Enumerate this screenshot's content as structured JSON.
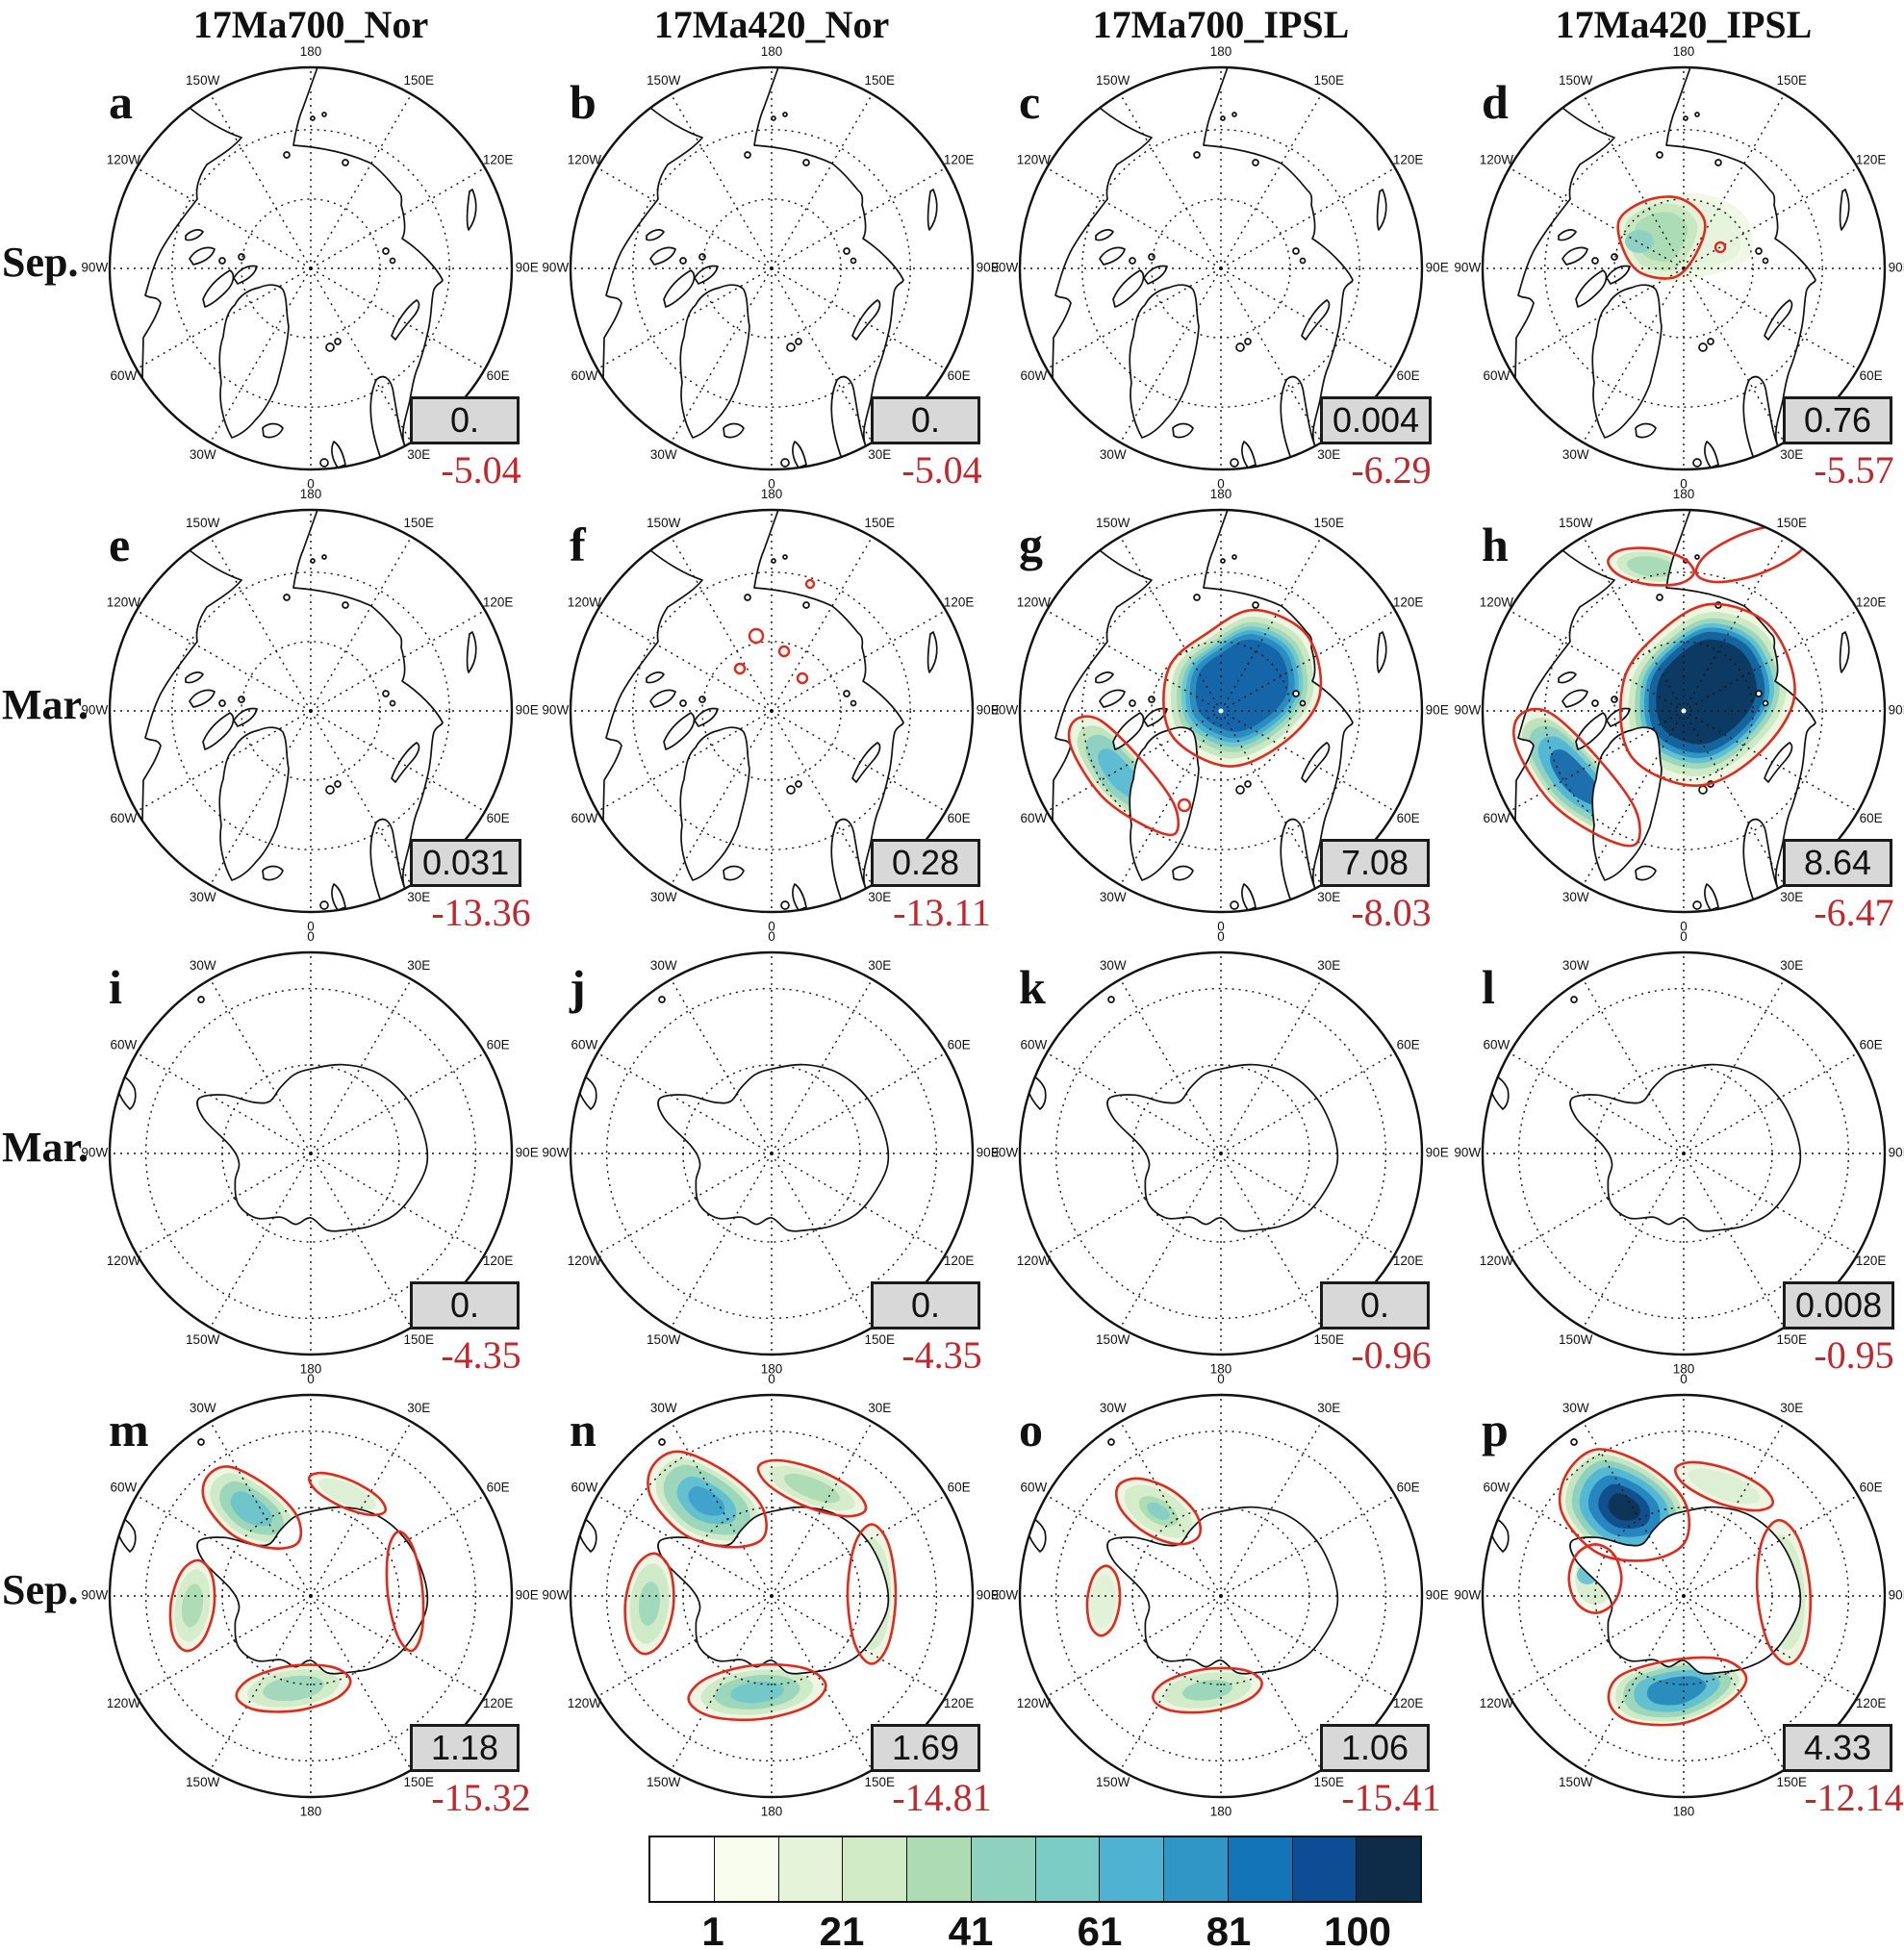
{
  "columns": [
    "17Ma700_Nor",
    "17Ma420_Nor",
    "17Ma700_IPSL",
    "17Ma420_IPSL"
  ],
  "rows": [
    {
      "label": "Sep."
    },
    {
      "label": "Mar."
    },
    {
      "label": "Mar."
    },
    {
      "label": "Sep."
    }
  ],
  "panels": [
    {
      "letter": "a",
      "region": "arctic",
      "row": 0,
      "col": 0,
      "value": "0.",
      "anomaly": "-5.04"
    },
    {
      "letter": "b",
      "region": "arctic",
      "row": 0,
      "col": 1,
      "value": "0.",
      "anomaly": "-5.04"
    },
    {
      "letter": "c",
      "region": "arctic",
      "row": 0,
      "col": 2,
      "value": "0.004",
      "anomaly": "-6.29"
    },
    {
      "letter": "d",
      "region": "arctic",
      "row": 0,
      "col": 3,
      "value": "0.76",
      "anomaly": "-5.57"
    },
    {
      "letter": "e",
      "region": "arctic",
      "row": 1,
      "col": 0,
      "value": "0.031",
      "anomaly": "-13.36"
    },
    {
      "letter": "f",
      "region": "arctic",
      "row": 1,
      "col": 1,
      "value": "0.28",
      "anomaly": "-13.11"
    },
    {
      "letter": "g",
      "region": "arctic",
      "row": 1,
      "col": 2,
      "value": "7.08",
      "anomaly": "-8.03"
    },
    {
      "letter": "h",
      "region": "arctic",
      "row": 1,
      "col": 3,
      "value": "8.64",
      "anomaly": "-6.47"
    },
    {
      "letter": "i",
      "region": "antarctic",
      "row": 2,
      "col": 0,
      "value": "0.",
      "anomaly": "-4.35"
    },
    {
      "letter": "j",
      "region": "antarctic",
      "row": 2,
      "col": 1,
      "value": "0.",
      "anomaly": "-4.35"
    },
    {
      "letter": "k",
      "region": "antarctic",
      "row": 2,
      "col": 2,
      "value": "0.",
      "anomaly": "-0.96"
    },
    {
      "letter": "l",
      "region": "antarctic",
      "row": 2,
      "col": 3,
      "value": "0.008",
      "anomaly": "-0.95"
    },
    {
      "letter": "m",
      "region": "antarctic",
      "row": 3,
      "col": 0,
      "value": "1.18",
      "anomaly": "-15.32"
    },
    {
      "letter": "n",
      "region": "antarctic",
      "row": 3,
      "col": 1,
      "value": "1.69",
      "anomaly": "-14.81"
    },
    {
      "letter": "o",
      "region": "antarctic",
      "row": 3,
      "col": 2,
      "value": "1.06",
      "anomaly": "-15.41"
    },
    {
      "letter": "p",
      "region": "antarctic",
      "row": 3,
      "col": 3,
      "value": "4.33",
      "anomaly": "-12.14"
    }
  ],
  "graticule_labels": {
    "arctic": [
      "180",
      "150E",
      "120E",
      "90E",
      "60E",
      "30E",
      "0",
      "30W",
      "60W",
      "90W",
      "120W",
      "150W"
    ],
    "antarctic": [
      "0",
      "30E",
      "60E",
      "90E",
      "120E",
      "150E",
      "180",
      "150W",
      "120W",
      "90W",
      "60W",
      "30W"
    ]
  },
  "colorbar": {
    "colors": [
      "#ffffff",
      "#f7fcec",
      "#e5f4d9",
      "#cfeac5",
      "#aedcb2",
      "#8ed1bd",
      "#7bccc4",
      "#4eb3d3",
      "#2f96c6",
      "#1474b8",
      "#0c4d94",
      "#0e2b47"
    ],
    "tick_labels": [
      "1",
      "21",
      "41",
      "61",
      "81",
      "100"
    ],
    "tick_positions": [
      1,
      3,
      5,
      7,
      9,
      11
    ]
  },
  "colors": {
    "contour_red": "#e02a1d",
    "anomaly_red": "#c1272d",
    "box_bg": "#d8d8d8"
  },
  "chart_data": {
    "type": "map",
    "title": "",
    "description": "4x4 grid of polar stereographic sea-ice concentration maps for four model runs; gray box = ice area value, red number = anomaly value; shading = concentration (%)",
    "columns": [
      "17Ma700_Nor",
      "17Ma420_Nor",
      "17Ma700_IPSL",
      "17Ma420_IPSL"
    ],
    "row_seasons": [
      "Sep.",
      "Mar.",
      "Mar.",
      "Sep."
    ],
    "row_hemispheres": [
      "Arctic",
      "Arctic",
      "Antarctic",
      "Antarctic"
    ],
    "panels": [
      {
        "letter": "a",
        "season": "Sep.",
        "hemisphere": "Arctic",
        "simulation": "17Ma700_Nor",
        "boxed_value": 0.0,
        "red_value": -5.04
      },
      {
        "letter": "b",
        "season": "Sep.",
        "hemisphere": "Arctic",
        "simulation": "17Ma420_Nor",
        "boxed_value": 0.0,
        "red_value": -5.04
      },
      {
        "letter": "c",
        "season": "Sep.",
        "hemisphere": "Arctic",
        "simulation": "17Ma700_IPSL",
        "boxed_value": 0.004,
        "red_value": -6.29
      },
      {
        "letter": "d",
        "season": "Sep.",
        "hemisphere": "Arctic",
        "simulation": "17Ma420_IPSL",
        "boxed_value": 0.76,
        "red_value": -5.57
      },
      {
        "letter": "e",
        "season": "Mar.",
        "hemisphere": "Arctic",
        "simulation": "17Ma700_Nor",
        "boxed_value": 0.031,
        "red_value": -13.36
      },
      {
        "letter": "f",
        "season": "Mar.",
        "hemisphere": "Arctic",
        "simulation": "17Ma420_Nor",
        "boxed_value": 0.28,
        "red_value": -13.11
      },
      {
        "letter": "g",
        "season": "Mar.",
        "hemisphere": "Arctic",
        "simulation": "17Ma700_IPSL",
        "boxed_value": 7.08,
        "red_value": -8.03
      },
      {
        "letter": "h",
        "season": "Mar.",
        "hemisphere": "Arctic",
        "simulation": "17Ma420_IPSL",
        "boxed_value": 8.64,
        "red_value": -6.47
      },
      {
        "letter": "i",
        "season": "Mar.",
        "hemisphere": "Antarctic",
        "simulation": "17Ma700_Nor",
        "boxed_value": 0.0,
        "red_value": -4.35
      },
      {
        "letter": "j",
        "season": "Mar.",
        "hemisphere": "Antarctic",
        "simulation": "17Ma420_Nor",
        "boxed_value": 0.0,
        "red_value": -4.35
      },
      {
        "letter": "k",
        "season": "Mar.",
        "hemisphere": "Antarctic",
        "simulation": "17Ma700_IPSL",
        "boxed_value": 0.0,
        "red_value": -0.96
      },
      {
        "letter": "l",
        "season": "Mar.",
        "hemisphere": "Antarctic",
        "simulation": "17Ma420_IPSL",
        "boxed_value": 0.008,
        "red_value": -0.95
      },
      {
        "letter": "m",
        "season": "Sep.",
        "hemisphere": "Antarctic",
        "simulation": "17Ma700_Nor",
        "boxed_value": 1.18,
        "red_value": -15.32
      },
      {
        "letter": "n",
        "season": "Sep.",
        "hemisphere": "Antarctic",
        "simulation": "17Ma420_Nor",
        "boxed_value": 1.69,
        "red_value": -14.81
      },
      {
        "letter": "o",
        "season": "Sep.",
        "hemisphere": "Antarctic",
        "simulation": "17Ma700_IPSL",
        "boxed_value": 1.06,
        "red_value": -15.41
      },
      {
        "letter": "p",
        "season": "Sep.",
        "hemisphere": "Antarctic",
        "simulation": "17Ma420_IPSL",
        "boxed_value": 4.33,
        "red_value": -12.14
      }
    ],
    "colorbar_scale": {
      "unit": "%",
      "cell_count": 12,
      "tick_labels": [
        1,
        21,
        41,
        61,
        81,
        100
      ]
    }
  }
}
